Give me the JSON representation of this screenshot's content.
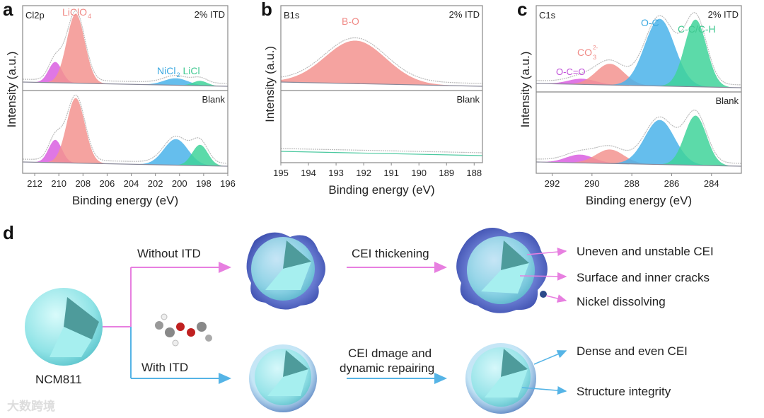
{
  "panel_letters": {
    "a": "a",
    "b": "b",
    "c": "c",
    "d": "d"
  },
  "chart_data": [
    {
      "type": "area",
      "id": "a",
      "element_label": "Cl2p",
      "condition_top": "2% ITD",
      "condition_bottom": "Blank",
      "xlabel": "Binding energy (eV)",
      "ylabel": "Intensity (a.u.)",
      "xlim": [
        213,
        196
      ],
      "xticks": [
        "212",
        "210",
        "208",
        "206",
        "204",
        "202",
        "200",
        "198",
        "196"
      ],
      "top_peaks": [
        {
          "name": "",
          "center": 210.3,
          "height": 0.3,
          "width": 0.55,
          "color": "#d95fe0"
        },
        {
          "name": "LiClO4",
          "center": 208.6,
          "height": 1.0,
          "width": 0.75,
          "color": "#f3938f"
        },
        {
          "name": "NiCl2",
          "center": 200.3,
          "height": 0.1,
          "width": 1.0,
          "color": "#4ab3ea"
        },
        {
          "name": "LiCl",
          "center": 198.3,
          "height": 0.07,
          "width": 0.6,
          "color": "#3fd39a"
        }
      ],
      "bottom_peaks": [
        {
          "center": 210.3,
          "height": 0.35,
          "width": 0.55,
          "color": "#d95fe0"
        },
        {
          "center": 208.6,
          "height": 1.0,
          "width": 0.75,
          "color": "#f3938f"
        },
        {
          "center": 200.3,
          "height": 0.4,
          "width": 1.0,
          "color": "#4ab3ea"
        },
        {
          "center": 198.3,
          "height": 0.32,
          "width": 0.65,
          "color": "#3fd39a"
        }
      ],
      "peak_labels": [
        "LiClO",
        "4",
        "NiCl",
        "2",
        "LiCl"
      ]
    },
    {
      "type": "area",
      "id": "b",
      "element_label": "B1s",
      "condition_top": "2% ITD",
      "condition_bottom": "Blank",
      "xlabel": "Binding energy (eV)",
      "ylabel": "Intensity (a.u.)",
      "xlim": [
        195,
        187.7
      ],
      "xticks": [
        "195",
        "194",
        "193",
        "192",
        "191",
        "190",
        "189",
        "188"
      ],
      "top_peaks": [
        {
          "name": "B-O",
          "center": 192.3,
          "height": 0.62,
          "width": 1.1,
          "color": "#f3938f"
        }
      ],
      "bottom_peaks": [],
      "peak_labels": [
        "B-O"
      ]
    },
    {
      "type": "area",
      "id": "c",
      "element_label": "C1s",
      "condition_top": "2% ITD",
      "condition_bottom": "Blank",
      "xlabel": "Binding energy (eV)",
      "ylabel": "Intensity (a.u.)",
      "xlim": [
        292.8,
        282.5
      ],
      "xticks": [
        "292",
        "290",
        "288",
        "286",
        "284"
      ],
      "top_peaks": [
        {
          "name": "O-C=O",
          "center": 290.5,
          "height": 0.08,
          "width": 0.7,
          "color": "#d95fe0"
        },
        {
          "name": "CO3 2-",
          "center": 289.1,
          "height": 0.3,
          "width": 0.7,
          "color": "#f3938f"
        },
        {
          "name": "O-C",
          "center": 286.6,
          "height": 0.95,
          "width": 0.75,
          "color": "#4ab3ea"
        },
        {
          "name": "C-C/C-H",
          "center": 284.8,
          "height": 0.95,
          "width": 0.55,
          "color": "#3fd39a"
        }
      ],
      "bottom_peaks": [
        {
          "center": 290.6,
          "height": 0.13,
          "width": 0.7,
          "color": "#d95fe0"
        },
        {
          "center": 289.1,
          "height": 0.22,
          "width": 0.7,
          "color": "#f3938f"
        },
        {
          "center": 286.6,
          "height": 0.7,
          "width": 0.75,
          "color": "#4ab3ea"
        },
        {
          "center": 284.8,
          "height": 0.78,
          "width": 0.55,
          "color": "#3fd39a"
        }
      ],
      "peak_labels": [
        "O-C=O",
        "CO",
        "3",
        "2-",
        "O-C",
        "C-C/C-H"
      ]
    }
  ],
  "schematic": {
    "start": "NCM811",
    "branch_top": "Without ITD",
    "branch_bottom": "With ITD",
    "step_top": "CEI thickening",
    "step_bottom_1": "CEI dmage and",
    "step_bottom_2": "dynamic repairing",
    "outcomes_top": [
      "Uneven and unstable CEI",
      "Surface and inner cracks",
      "Nickel dissolving"
    ],
    "outcomes_bottom": [
      "Dense and even CEI",
      "Structure integrity"
    ],
    "colors": {
      "pink": "#e77fe0",
      "blue": "#55b4e6"
    }
  },
  "watermark": "大数跨境"
}
